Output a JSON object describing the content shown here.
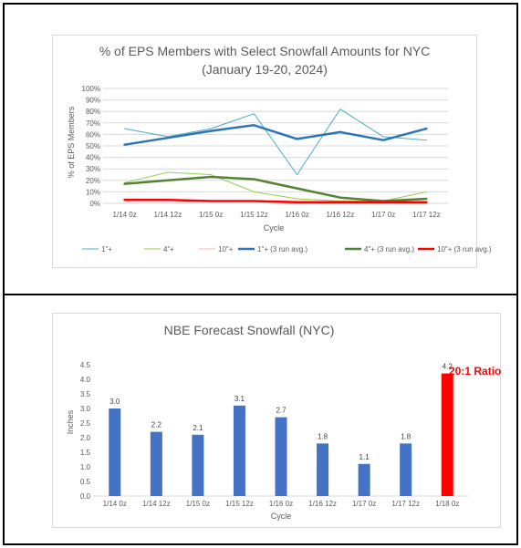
{
  "chart_data": [
    {
      "type": "line",
      "title": "% of EPS Members with Select Snowfall Amounts for NYC",
      "subtitle": "(January 19-20, 2024)",
      "xlabel": "Cycle",
      "ylabel": "% of EPS Members",
      "ylim": [
        0,
        100
      ],
      "y_ticks": [
        "0%",
        "10%",
        "20%",
        "30%",
        "40%",
        "50%",
        "60%",
        "70%",
        "80%",
        "90%",
        "100%"
      ],
      "categories": [
        "1/14 0z",
        "1/14 12z",
        "1/15 0z",
        "1/15 12z",
        "1/16 0z",
        "1/16 12z",
        "1/17 0z",
        "1/17 12z"
      ],
      "grid": true,
      "legend_position": "bottom",
      "series": [
        {
          "name": "1\"+",
          "color": "#4bacc6",
          "width": 1,
          "values": [
            65,
            58,
            65,
            78,
            25,
            82,
            58,
            55
          ]
        },
        {
          "name": "4\"+",
          "color": "#92d050",
          "width": 1,
          "values": [
            18,
            27,
            25,
            10,
            4,
            2,
            2,
            10
          ]
        },
        {
          "name": "10\"+",
          "color": "#f4b6b6",
          "width": 1,
          "values": [
            4,
            3,
            2,
            2,
            0,
            0,
            0,
            0
          ]
        },
        {
          "name": "1\"+ (3 run avg.)",
          "color": "#2e75b6",
          "width": 2.5,
          "values": [
            51,
            57,
            63,
            68,
            56,
            62,
            55,
            65
          ]
        },
        {
          "name": "4\"+ (3 run avg.)",
          "color": "#548235",
          "width": 2.5,
          "values": [
            17,
            20,
            23,
            21,
            13,
            5,
            2,
            4
          ]
        },
        {
          "name": "10\"+ (3 run avg.)",
          "color": "#ff0000",
          "width": 2.5,
          "values": [
            3,
            3,
            2,
            2,
            1,
            1,
            1,
            1
          ]
        }
      ]
    },
    {
      "type": "bar",
      "title": "NBE Forecast Snowfall (NYC)",
      "xlabel": "Cycle",
      "ylabel": "Inches",
      "ylim": [
        0,
        4.5
      ],
      "y_ticks": [
        "0.0",
        "0.5",
        "1.0",
        "1.5",
        "2.0",
        "2.5",
        "3.0",
        "3.5",
        "4.0",
        "4.5"
      ],
      "categories": [
        "1/14 0z",
        "1/14 12z",
        "1/15 0z",
        "1/15 12z",
        "1/16 0z",
        "1/16 12z",
        "1/17 0z",
        "1/17 12z",
        "1/18 0z"
      ],
      "values": [
        3.0,
        2.2,
        2.1,
        3.1,
        2.7,
        1.8,
        1.1,
        1.8,
        4.2
      ],
      "value_labels": [
        "3.0",
        "2.2",
        "2.1",
        "3.1",
        "2.7",
        "1.8",
        "1.1",
        "1.8",
        "4.2"
      ],
      "bar_colors": [
        "#4472c4",
        "#4472c4",
        "#4472c4",
        "#4472c4",
        "#4472c4",
        "#4472c4",
        "#4472c4",
        "#4472c4",
        "#ff0000"
      ],
      "annotation": "20:1 Ratio",
      "annotation_color": "#ff0000"
    }
  ]
}
